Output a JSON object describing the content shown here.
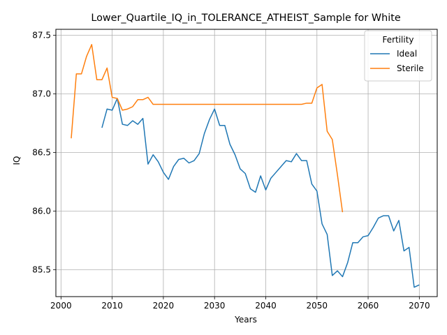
{
  "chart_data": {
    "type": "line",
    "title": "Lower_Quartile_IQ_in_TOLERANCE_ATHEIST_Sample for White",
    "xlabel": "Years",
    "ylabel": "IQ",
    "xlim": [
      1999,
      2073.5
    ],
    "ylim": [
      85.27,
      87.55
    ],
    "xticks": [
      2000,
      2010,
      2020,
      2030,
      2040,
      2050,
      2060,
      2070
    ],
    "yticks": [
      85.5,
      86.0,
      86.5,
      87.0,
      87.5
    ],
    "xtick_labels": [
      "2000",
      "2010",
      "2020",
      "2030",
      "2040",
      "2050",
      "2060",
      "2070"
    ],
    "ytick_labels": [
      "85.5",
      "86.0",
      "86.5",
      "87.0",
      "87.5"
    ],
    "grid": true,
    "legend": {
      "title": "Fertility",
      "placement": "top-right"
    },
    "series": [
      {
        "name": "Ideal",
        "color": "#1f77b4",
        "x": [
          2008,
          2009,
          2010,
          2011,
          2012,
          2013,
          2014,
          2015,
          2016,
          2017,
          2018,
          2019,
          2020,
          2021,
          2022,
          2023,
          2024,
          2025,
          2026,
          2027,
          2028,
          2029,
          2030,
          2031,
          2032,
          2033,
          2034,
          2035,
          2036,
          2037,
          2038,
          2039,
          2040,
          2041,
          2042,
          2043,
          2044,
          2045,
          2046,
          2047,
          2048,
          2049,
          2050,
          2051,
          2052,
          2053,
          2054,
          2055,
          2056,
          2057,
          2058,
          2059,
          2060,
          2061,
          2062,
          2063,
          2064,
          2065,
          2066,
          2067,
          2068,
          2069,
          2070
        ],
        "values": [
          86.71,
          86.87,
          86.86,
          86.96,
          86.74,
          86.73,
          86.77,
          86.74,
          86.79,
          86.4,
          86.48,
          86.42,
          86.33,
          86.27,
          86.38,
          86.44,
          86.45,
          86.41,
          86.43,
          86.49,
          86.66,
          86.78,
          86.87,
          86.73,
          86.73,
          86.57,
          86.48,
          86.36,
          86.32,
          86.19,
          86.16,
          86.3,
          86.18,
          86.28,
          86.33,
          86.38,
          86.43,
          86.42,
          86.49,
          86.43,
          86.43,
          86.23,
          86.17,
          85.89,
          85.8,
          85.45,
          85.49,
          85.44,
          85.56,
          85.73,
          85.73,
          85.78,
          85.79,
          85.86,
          85.94,
          85.96,
          85.96,
          85.83,
          85.92,
          85.66,
          85.69,
          85.35,
          85.37
        ]
      },
      {
        "name": "Sterile",
        "color": "#ff7f0e",
        "x": [
          2002,
          2003,
          2004,
          2005,
          2006,
          2007,
          2008,
          2009,
          2010,
          2011,
          2012,
          2013,
          2014,
          2015,
          2016,
          2017,
          2018,
          2019,
          2020,
          2021,
          2022,
          2023,
          2024,
          2025,
          2026,
          2027,
          2028,
          2029,
          2030,
          2031,
          2032,
          2033,
          2034,
          2035,
          2036,
          2037,
          2038,
          2039,
          2040,
          2041,
          2042,
          2043,
          2044,
          2045,
          2046,
          2047,
          2048,
          2049,
          2050,
          2051,
          2052,
          2053,
          2054,
          2055
        ],
        "values": [
          86.62,
          87.17,
          87.17,
          87.32,
          87.42,
          87.12,
          87.12,
          87.22,
          86.97,
          86.96,
          86.86,
          86.87,
          86.89,
          86.95,
          86.95,
          86.97,
          86.91,
          86.91,
          86.91,
          86.91,
          86.91,
          86.91,
          86.91,
          86.91,
          86.91,
          86.91,
          86.91,
          86.91,
          86.91,
          86.91,
          86.91,
          86.91,
          86.91,
          86.91,
          86.91,
          86.91,
          86.91,
          86.91,
          86.91,
          86.91,
          86.91,
          86.91,
          86.91,
          86.91,
          86.91,
          86.91,
          86.92,
          86.92,
          87.05,
          87.08,
          86.68,
          86.61,
          86.31,
          85.99
        ]
      }
    ]
  }
}
